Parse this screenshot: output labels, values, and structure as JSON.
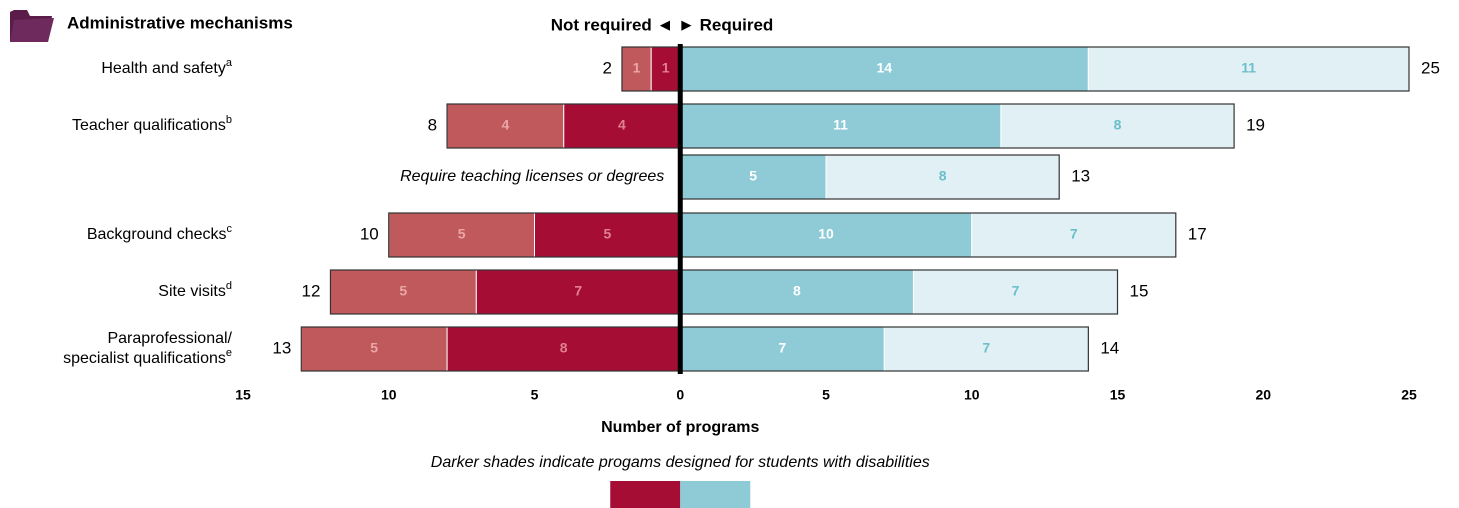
{
  "chart_data": {
    "type": "diverging_bar",
    "title": "Administrative mechanisms",
    "direction_label": "Not required ◄ ► Required",
    "categories": [
      {
        "lines": [
          "Health and safety"
        ],
        "note": "a"
      },
      {
        "lines": [
          "Teacher qualifications"
        ],
        "note": "b"
      },
      {
        "lines": [
          "Require teaching licenses or degrees"
        ],
        "italic": true
      },
      {
        "lines": [
          "Background checks"
        ],
        "note": "c"
      },
      {
        "lines": [
          "Site visits"
        ],
        "note": "d"
      },
      {
        "lines": [
          "Paraprofessional/",
          "specialist qualifications"
        ],
        "note": "e"
      }
    ],
    "series": [
      {
        "side": "left",
        "color": "#a50d35",
        "label_color": "#e0808f",
        "values": [
          1,
          4,
          null,
          5,
          7,
          8
        ]
      },
      {
        "side": "left",
        "color": "#c0595c",
        "label_color": "#eaa6a6",
        "values": [
          1,
          4,
          null,
          5,
          5,
          5
        ]
      },
      {
        "side": "right",
        "color": "#8ecbd6",
        "label_color": "#ffffff",
        "values": [
          14,
          11,
          5,
          10,
          8,
          7
        ]
      },
      {
        "side": "right",
        "color": "#e1f0f4",
        "label_color": "#6bbfcc",
        "values": [
          11,
          8,
          8,
          7,
          7,
          7
        ]
      }
    ],
    "totals": {
      "left": [
        2,
        8,
        null,
        10,
        12,
        13
      ],
      "right": [
        25,
        19,
        13,
        17,
        15,
        14
      ]
    },
    "xlim": [
      -15,
      25
    ],
    "xticks": [
      {
        "value": -15,
        "label": "15"
      },
      {
        "value": -10,
        "label": "10"
      },
      {
        "value": -5,
        "label": "5"
      },
      0,
      5,
      10,
      15,
      20,
      25
    ],
    "xlabel": "Number of programs",
    "legend_note": "Darker shades indicate progams designed for students with disabilities"
  }
}
